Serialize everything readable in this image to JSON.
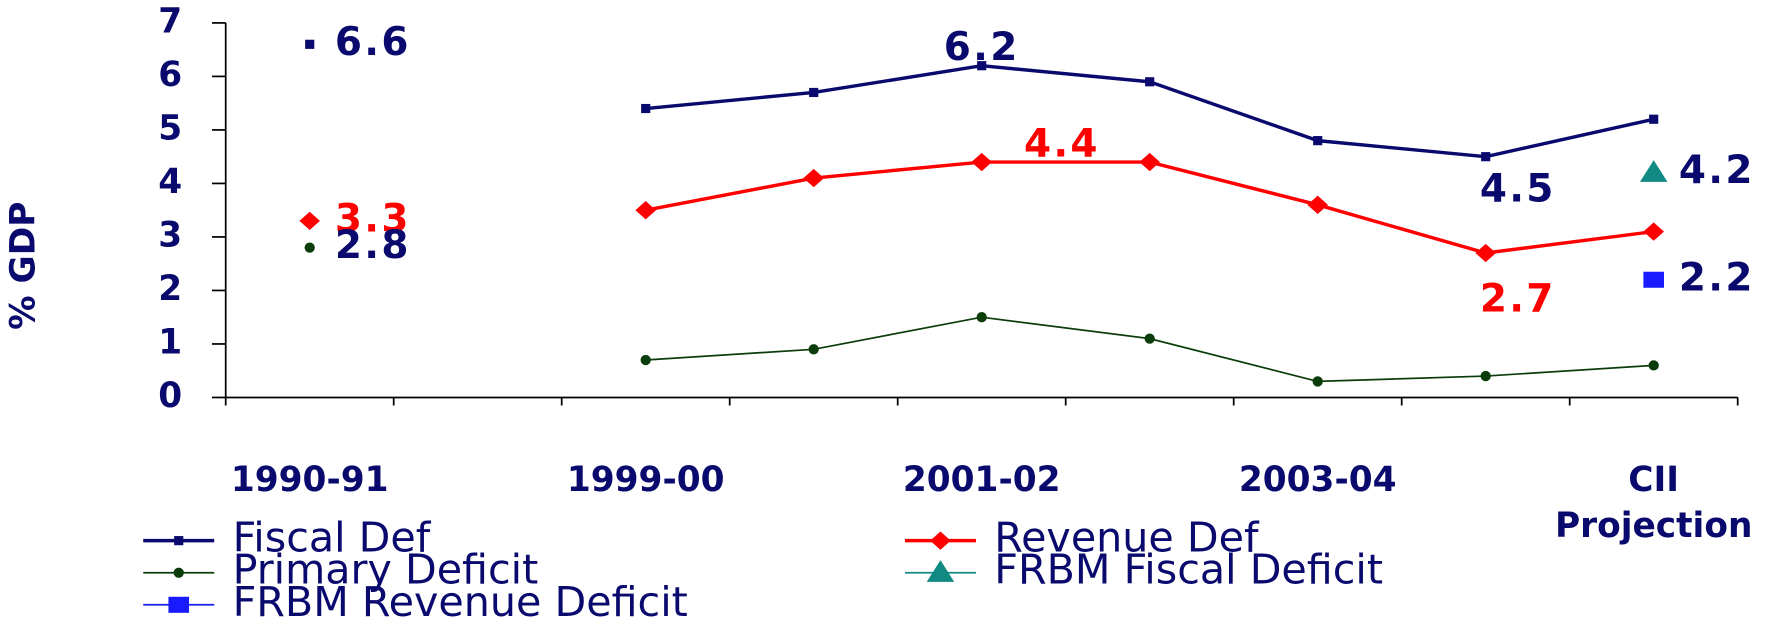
{
  "chart_data": {
    "type": "line",
    "y_label": "% GDP",
    "categories": [
      "1990-91",
      null,
      "1999-00",
      null,
      "2001-02",
      null,
      "2003-04",
      null,
      "CII Projection"
    ],
    "ylim": [
      0,
      7
    ],
    "yticks": [
      0,
      1,
      2,
      3,
      4,
      5,
      6,
      7
    ],
    "series": [
      {
        "name": "Fiscal Def",
        "color": "#0a0a6e",
        "marker": "square",
        "values": [
          6.6,
          null,
          5.4,
          5.7,
          6.2,
          5.9,
          4.8,
          4.5,
          5.2
        ],
        "value_labels": [
          "6.6",
          null,
          null,
          null,
          "6.2",
          null,
          null,
          "4.5",
          null
        ]
      },
      {
        "name": "Revenue Def",
        "color": "#ff0000",
        "marker": "diamond",
        "values": [
          3.3,
          null,
          3.5,
          4.1,
          4.4,
          4.4,
          3.6,
          2.7,
          3.1
        ],
        "value_labels": [
          "3.3",
          null,
          null,
          null,
          "4.4",
          null,
          null,
          "2.7",
          null
        ]
      },
      {
        "name": "Primary Deficit",
        "color": "#0b3d0b",
        "marker": "circle",
        "values": [
          2.8,
          null,
          0.7,
          0.9,
          1.5,
          1.1,
          0.3,
          0.4,
          0.6
        ],
        "value_labels": [
          "2.8",
          null,
          null,
          null,
          null,
          null,
          null,
          null,
          null
        ]
      },
      {
        "name": "FRBM Fiscal Deficit",
        "color": "#128a84",
        "marker": "triangle",
        "values": [
          null,
          null,
          null,
          null,
          null,
          null,
          null,
          null,
          4.2
        ],
        "value_labels": [
          null,
          null,
          null,
          null,
          null,
          null,
          null,
          null,
          "4.2"
        ]
      },
      {
        "name": "FRBM Revenue Deficit",
        "color": "#1a1aff",
        "marker": "bigsquare",
        "values": [
          null,
          null,
          null,
          null,
          null,
          null,
          null,
          null,
          2.2
        ],
        "value_labels": [
          null,
          null,
          null,
          null,
          null,
          null,
          null,
          null,
          "2.2"
        ]
      }
    ]
  }
}
